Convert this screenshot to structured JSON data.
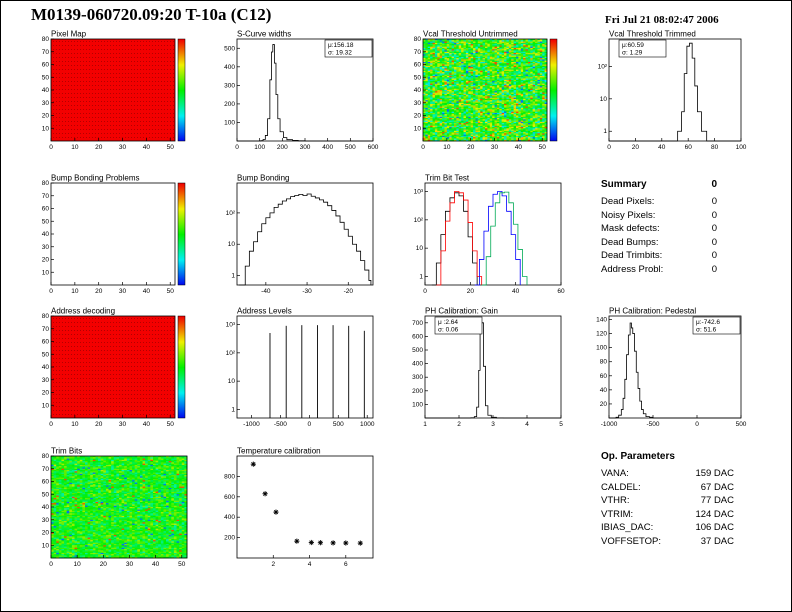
{
  "header": {
    "title": "M0139-060720.09:20 T-10a (C12)",
    "timestamp": "Fri Jul 21 08:02:47 2006"
  },
  "summary": {
    "title": "Summary",
    "total": "0",
    "rows": [
      {
        "label": "Dead Pixels:",
        "value": "0"
      },
      {
        "label": "Noisy Pixels:",
        "value": "0"
      },
      {
        "label": "Mask defects:",
        "value": "0"
      },
      {
        "label": "Dead Bumps:",
        "value": "0"
      },
      {
        "label": "Dead Trimbits:",
        "value": "0"
      },
      {
        "label": "Address Probl:",
        "value": "0"
      }
    ]
  },
  "op_parameters": {
    "title": "Op. Parameters",
    "rows": [
      {
        "label": "VANA:",
        "value": "159 DAC"
      },
      {
        "label": "CALDEL:",
        "value": "67 DAC"
      },
      {
        "label": "VTHR:",
        "value": "77 DAC"
      },
      {
        "label": "VTRIM:",
        "value": "124 DAC"
      },
      {
        "label": "IBIAS_DAC:",
        "value": "106 DAC"
      },
      {
        "label": "VOFFSETOP:",
        "value": "37 DAC"
      }
    ]
  },
  "chart_data": [
    {
      "type": "heatmap",
      "title": "Pixel Map",
      "style": "solid",
      "seed": 1,
      "colorbar": true,
      "xlim": [
        0,
        52
      ],
      "ylim": [
        0,
        80
      ],
      "xticks": [
        0,
        10,
        20,
        30,
        40,
        50
      ],
      "yticks": [
        10,
        20,
        30,
        40,
        50,
        60,
        70,
        80
      ]
    },
    {
      "type": "hist",
      "title": "S-Curve widths",
      "log": false,
      "xlim": [
        0,
        600
      ],
      "xticks": [
        0,
        100,
        200,
        300,
        400,
        500,
        600
      ],
      "ylim": [
        0,
        550
      ],
      "yticks": [
        100,
        200,
        300,
        400,
        500
      ],
      "stats": {
        "pos": "tr",
        "lines": [
          "μ:156.18",
          "σ: 19.32"
        ]
      },
      "points": [
        [
          0,
          0
        ],
        [
          95,
          0
        ],
        [
          105,
          2
        ],
        [
          115,
          8
        ],
        [
          125,
          30
        ],
        [
          135,
          120
        ],
        [
          145,
          330
        ],
        [
          152,
          480
        ],
        [
          158,
          520
        ],
        [
          165,
          420
        ],
        [
          172,
          250
        ],
        [
          180,
          120
        ],
        [
          190,
          50
        ],
        [
          205,
          18
        ],
        [
          220,
          7
        ],
        [
          245,
          3
        ],
        [
          270,
          1
        ],
        [
          300,
          0
        ],
        [
          600,
          0
        ]
      ]
    },
    {
      "type": "heatmap",
      "title": "Vcal Threshold Untrimmed",
      "style": "noise",
      "seed": 2,
      "colorbar": true,
      "mean": 0.52,
      "spread": 0.22,
      "outliers": 0.04,
      "xlim": [
        0,
        52
      ],
      "ylim": [
        0,
        80
      ],
      "xticks": [
        0,
        10,
        20,
        30,
        40,
        50
      ],
      "yticks": [
        10,
        20,
        30,
        40,
        50,
        60,
        70,
        80
      ]
    },
    {
      "type": "hist",
      "title": "Vcal Threshold Trimmed",
      "log": true,
      "xlim": [
        0,
        100
      ],
      "xticks": [
        0,
        20,
        40,
        60,
        80,
        100
      ],
      "ylim": [
        0.5,
        700
      ],
      "yticks": [
        1,
        10,
        100
      ],
      "ytick_labels": [
        "1",
        "10",
        "10²"
      ],
      "stats": {
        "pos": "tl",
        "lines": [
          "μ:60.59",
          "σ: 1.29"
        ]
      },
      "points": [
        [
          0,
          0.4
        ],
        [
          48,
          0.4
        ],
        [
          52,
          1
        ],
        [
          55,
          4
        ],
        [
          57,
          60
        ],
        [
          59,
          420
        ],
        [
          61,
          520
        ],
        [
          63,
          180
        ],
        [
          65,
          25
        ],
        [
          67,
          4
        ],
        [
          70,
          1
        ],
        [
          74,
          0.4
        ],
        [
          100,
          0.4
        ]
      ]
    },
    {
      "type": "heatmap",
      "title": "Bump Bonding Problems",
      "style": "empty",
      "seed": 5,
      "colorbar": true,
      "xlim": [
        0,
        52
      ],
      "ylim": [
        0,
        80
      ],
      "xticks": [
        0,
        10,
        20,
        30,
        40,
        50
      ],
      "yticks": [
        10,
        20,
        30,
        40,
        50,
        60,
        70,
        80
      ]
    },
    {
      "type": "hist",
      "title": "Bump Bonding",
      "log": true,
      "xlim": [
        -47,
        -14
      ],
      "xticks": [
        -40,
        -30,
        -20
      ],
      "ylim": [
        0.5,
        900
      ],
      "yticks": [
        1,
        10,
        100
      ],
      "ytick_labels": [
        "1",
        "10",
        "10²"
      ],
      "points": [
        [
          -46.5,
          0.4
        ],
        [
          -45,
          2
        ],
        [
          -44,
          6
        ],
        [
          -43,
          12
        ],
        [
          -42,
          25
        ],
        [
          -41,
          45
        ],
        [
          -40,
          70
        ],
        [
          -39,
          100
        ],
        [
          -38,
          150
        ],
        [
          -37,
          190
        ],
        [
          -36,
          240
        ],
        [
          -35,
          280
        ],
        [
          -34,
          330
        ],
        [
          -33,
          360
        ],
        [
          -32,
          390
        ],
        [
          -31,
          360
        ],
        [
          -30,
          400
        ],
        [
          -29,
          340
        ],
        [
          -28,
          300
        ],
        [
          -27,
          260
        ],
        [
          -26,
          220
        ],
        [
          -25,
          170
        ],
        [
          -24,
          120
        ],
        [
          -23,
          80
        ],
        [
          -22,
          50
        ],
        [
          -21,
          30
        ],
        [
          -20,
          18
        ],
        [
          -19,
          10
        ],
        [
          -18,
          6
        ],
        [
          -17,
          3
        ],
        [
          -16,
          1.5
        ],
        [
          -15,
          0.7
        ],
        [
          -14.5,
          0.4
        ]
      ]
    },
    {
      "type": "multihist",
      "title": "Trim Bit Test",
      "log": true,
      "xlim": [
        0,
        60
      ],
      "xticks": [
        0,
        20,
        40,
        60
      ],
      "ylim": [
        0.5,
        2000
      ],
      "yticks": [
        1,
        10,
        100,
        1000
      ],
      "ytick_labels": [
        "1",
        "10",
        "10²",
        "10³"
      ],
      "series": [
        {
          "color": "#000000",
          "points": [
            [
              3,
              0.4
            ],
            [
              5,
              3
            ],
            [
              7,
              30
            ],
            [
              9,
              200
            ],
            [
              11,
              600
            ],
            [
              13,
              900
            ],
            [
              15,
              700
            ],
            [
              17,
              200
            ],
            [
              19,
              25
            ],
            [
              21,
              3
            ],
            [
              23,
              0.4
            ]
          ]
        },
        {
          "color": "#ff0000",
          "points": [
            [
              5,
              0.4
            ],
            [
              7,
              8
            ],
            [
              9,
              90
            ],
            [
              11,
              400
            ],
            [
              13,
              1000
            ],
            [
              15,
              900
            ],
            [
              17,
              500
            ],
            [
              19,
              80
            ],
            [
              21,
              8
            ],
            [
              23,
              1
            ],
            [
              25,
              0.4
            ]
          ]
        },
        {
          "color": "#0000ff",
          "points": [
            [
              22,
              0.4
            ],
            [
              24,
              4
            ],
            [
              26,
              40
            ],
            [
              28,
              300
            ],
            [
              30,
              800
            ],
            [
              32,
              1000
            ],
            [
              34,
              700
            ],
            [
              36,
              200
            ],
            [
              38,
              30
            ],
            [
              40,
              4
            ],
            [
              42,
              0.4
            ]
          ]
        },
        {
          "color": "#00aa55",
          "points": [
            [
              25,
              0.4
            ],
            [
              27,
              5
            ],
            [
              29,
              60
            ],
            [
              31,
              400
            ],
            [
              33,
              900
            ],
            [
              35,
              950
            ],
            [
              37,
              400
            ],
            [
              39,
              70
            ],
            [
              41,
              9
            ],
            [
              43,
              1
            ],
            [
              45,
              0.4
            ]
          ]
        }
      ]
    },
    {
      "type": "heatmap",
      "title": "Address decoding",
      "style": "solid",
      "seed": 4,
      "colorbar": true,
      "xlim": [
        0,
        52
      ],
      "ylim": [
        0,
        80
      ],
      "xticks": [
        0,
        10,
        20,
        30,
        40,
        50
      ],
      "yticks": [
        10,
        20,
        30,
        40,
        50,
        60,
        70,
        80
      ]
    },
    {
      "type": "spikes",
      "title": "Address Levels",
      "log": true,
      "color": "#000000",
      "xlim": [
        -1250,
        1100
      ],
      "xticks": [
        -1000,
        -500,
        0,
        500,
        1000
      ],
      "ylim": [
        0.5,
        2000
      ],
      "yticks": [
        1,
        10,
        100,
        1000
      ],
      "ytick_labels": [
        "1",
        "10",
        "10²",
        "10³"
      ],
      "spikes": [
        [
          -680,
          500
        ],
        [
          -400,
          900
        ],
        [
          -130,
          950
        ],
        [
          140,
          950
        ],
        [
          410,
          950
        ],
        [
          680,
          900
        ],
        [
          950,
          600
        ]
      ]
    },
    {
      "type": "hist",
      "title": "PH Calibration: Gain",
      "log": false,
      "xlim": [
        1,
        5
      ],
      "xticks": [
        1,
        2,
        3,
        4,
        5
      ],
      "ylim": [
        0,
        750
      ],
      "yticks": [
        100,
        200,
        300,
        400,
        500,
        600,
        700
      ],
      "stats": {
        "pos": "tl",
        "lines": [
          "μ :2.64",
          "σ: 0.06"
        ]
      },
      "points": [
        [
          1,
          0
        ],
        [
          2.2,
          0
        ],
        [
          2.35,
          2
        ],
        [
          2.45,
          10
        ],
        [
          2.52,
          80
        ],
        [
          2.58,
          350
        ],
        [
          2.62,
          650
        ],
        [
          2.66,
          700
        ],
        [
          2.72,
          380
        ],
        [
          2.78,
          90
        ],
        [
          2.85,
          20
        ],
        [
          2.95,
          5
        ],
        [
          3.1,
          1
        ],
        [
          3.3,
          0
        ],
        [
          5,
          0
        ]
      ]
    },
    {
      "type": "hist",
      "title": "PH Calibration: Pedestal",
      "log": false,
      "xlim": [
        -1000,
        500
      ],
      "xticks": [
        -1000,
        -500,
        0,
        500
      ],
      "ylim": [
        0,
        145
      ],
      "yticks": [
        20,
        40,
        60,
        80,
        100,
        120,
        140
      ],
      "stats": {
        "pos": "tr",
        "lines": [
          "μ:-742.6",
          "σ: 51.6"
        ]
      },
      "points": [
        [
          -1000,
          0
        ],
        [
          -920,
          1
        ],
        [
          -890,
          4
        ],
        [
          -860,
          12
        ],
        [
          -840,
          28
        ],
        [
          -820,
          55
        ],
        [
          -800,
          90
        ],
        [
          -780,
          118
        ],
        [
          -760,
          135
        ],
        [
          -745,
          128
        ],
        [
          -730,
          120
        ],
        [
          -710,
          95
        ],
        [
          -690,
          65
        ],
        [
          -670,
          42
        ],
        [
          -650,
          24
        ],
        [
          -630,
          12
        ],
        [
          -610,
          6
        ],
        [
          -580,
          2
        ],
        [
          -540,
          1
        ],
        [
          -500,
          0
        ],
        [
          500,
          0
        ]
      ]
    },
    {
      "type": "heatmap",
      "title": "Trim Bits",
      "style": "noise",
      "seed": 3,
      "colorbar": false,
      "mean": 0.5,
      "spread": 0.13,
      "outliers": 0.03,
      "xlim": [
        0,
        52
      ],
      "ylim": [
        0,
        80
      ],
      "xticks": [
        0,
        10,
        20,
        30,
        40,
        50
      ],
      "yticks": [
        10,
        20,
        30,
        40,
        50,
        60,
        70,
        80
      ]
    },
    {
      "type": "scatter",
      "title": "Temperature calibration",
      "xlim": [
        0,
        7.5
      ],
      "xticks": [
        2,
        4,
        6
      ],
      "ylim": [
        0,
        1000
      ],
      "yticks": [
        200,
        400,
        600,
        800
      ],
      "points": [
        [
          0.9,
          920
        ],
        [
          1.55,
          630
        ],
        [
          2.15,
          450
        ],
        [
          3.3,
          165
        ],
        [
          4.1,
          152
        ],
        [
          4.6,
          150
        ],
        [
          5.3,
          148
        ],
        [
          6.0,
          147
        ],
        [
          6.8,
          146
        ]
      ]
    }
  ]
}
